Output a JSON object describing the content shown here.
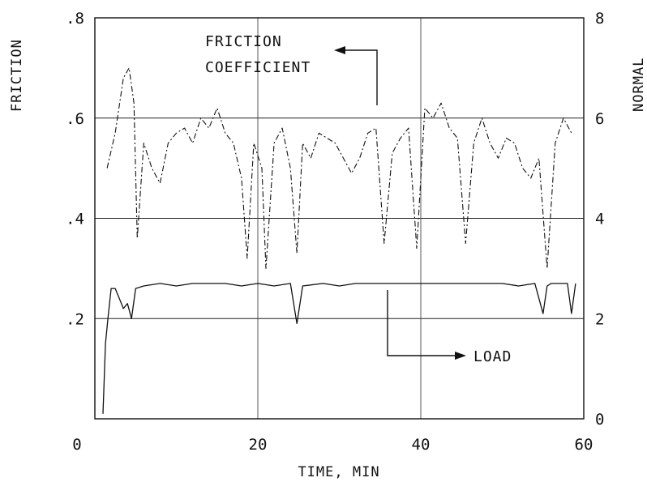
{
  "chart_data": {
    "type": "line",
    "xlabel": "TIME, MIN",
    "ylabel_left": "FRICTION",
    "ylabel_right": "NORMAL",
    "xlim": [
      0,
      60
    ],
    "ylim_left": [
      0,
      0.8
    ],
    "ylim_right": [
      0,
      8
    ],
    "x_ticks": [
      0,
      20,
      40,
      60
    ],
    "x_tick_labels": [
      "0",
      "20",
      "40",
      "60"
    ],
    "y_left_ticks": [
      0.2,
      0.4,
      0.6,
      0.8
    ],
    "y_left_tick_labels": [
      ".2",
      ".4",
      ".6",
      ".8"
    ],
    "y_right_ticks": [
      0,
      2,
      4,
      6,
      8
    ],
    "y_right_tick_labels": [
      "0",
      "2",
      "4",
      "6",
      "8"
    ],
    "grid": true,
    "annotations": {
      "friction_line1": "FRICTION",
      "friction_line2": "COEFFICIENT",
      "load": "LOAD"
    },
    "series": [
      {
        "axis": "left",
        "style": "dash-dot",
        "x": [
          1.5,
          2.5,
          3.5,
          4.2,
          4.8,
          5.2,
          6,
          7,
          8,
          9,
          10,
          11,
          12,
          13,
          14,
          15,
          16,
          17,
          18,
          18.7,
          19.5,
          20.5,
          21,
          22,
          23,
          24,
          24.8,
          25.5,
          26.5,
          27.5,
          28.5,
          29.5,
          30.5,
          31.5,
          32.5,
          33.5,
          34.5,
          35.5,
          36.5,
          37.5,
          38.5,
          39.5,
          40.5,
          41.5,
          42.5,
          43.5,
          44.5,
          45.5,
          46.5,
          47.5,
          48.5,
          49.5,
          50.5,
          51.5,
          52.5,
          53.5,
          54.5,
          55.5,
          56.5,
          57.5,
          58.5
        ],
        "values": [
          0.5,
          0.57,
          0.68,
          0.7,
          0.63,
          0.36,
          0.55,
          0.5,
          0.47,
          0.55,
          0.57,
          0.58,
          0.55,
          0.6,
          0.58,
          0.62,
          0.57,
          0.55,
          0.48,
          0.32,
          0.55,
          0.5,
          0.3,
          0.55,
          0.58,
          0.5,
          0.33,
          0.55,
          0.52,
          0.57,
          0.56,
          0.55,
          0.52,
          0.49,
          0.52,
          0.57,
          0.58,
          0.35,
          0.53,
          0.56,
          0.58,
          0.34,
          0.62,
          0.6,
          0.63,
          0.58,
          0.56,
          0.35,
          0.55,
          0.6,
          0.55,
          0.52,
          0.56,
          0.55,
          0.5,
          0.48,
          0.52,
          0.3,
          0.55,
          0.6,
          0.57
        ]
      },
      {
        "axis": "right",
        "style": "solid",
        "x": [
          1,
          1.3,
          1.6,
          2,
          2.5,
          3,
          3.5,
          4,
          4.5,
          5,
          6,
          8,
          10,
          12,
          14,
          16,
          18,
          20,
          22,
          24,
          24.8,
          25.5,
          28,
          30,
          32,
          34,
          36,
          38,
          40,
          42,
          44,
          46,
          48,
          50,
          52,
          54,
          55,
          55.5,
          56,
          58,
          58.5,
          59
        ],
        "values": [
          0.1,
          1.5,
          2.0,
          2.6,
          2.6,
          2.4,
          2.2,
          2.3,
          2.0,
          2.6,
          2.65,
          2.7,
          2.65,
          2.7,
          2.7,
          2.7,
          2.65,
          2.7,
          2.65,
          2.7,
          1.9,
          2.65,
          2.7,
          2.65,
          2.7,
          2.7,
          2.7,
          2.7,
          2.7,
          2.7,
          2.7,
          2.7,
          2.7,
          2.7,
          2.65,
          2.7,
          2.1,
          2.65,
          2.7,
          2.7,
          2.1,
          2.7
        ]
      }
    ]
  }
}
